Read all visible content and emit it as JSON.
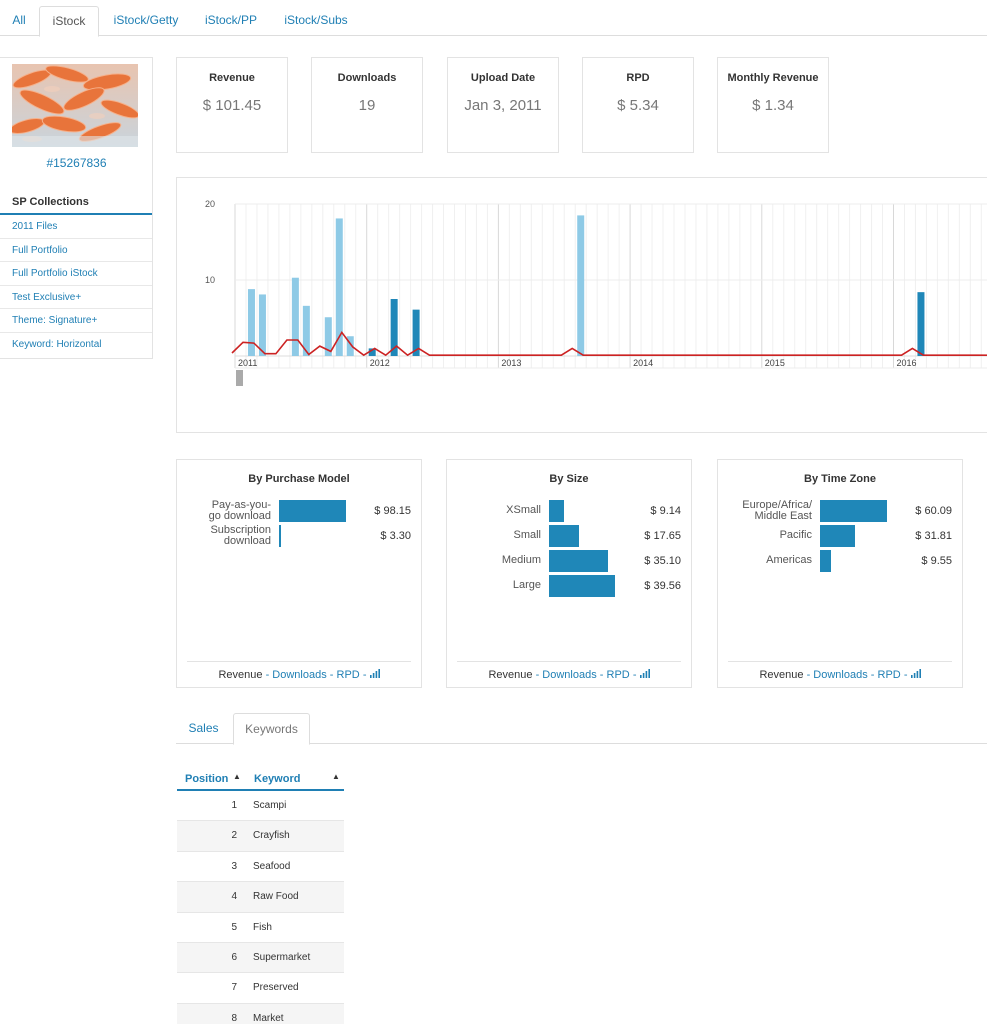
{
  "top_tabs": [
    {
      "label": "All",
      "active": false
    },
    {
      "label": "iStock",
      "active": true
    },
    {
      "label": "iStock/Getty",
      "active": false
    },
    {
      "label": "iStock/PP",
      "active": false
    },
    {
      "label": "iStock/Subs",
      "active": false
    }
  ],
  "sidebar": {
    "image_id": "#15267836",
    "collections_title": "SP Collections",
    "collections": [
      "2011 Files",
      "Full Portfolio",
      "Full Portfolio iStock",
      "Test Exclusive+",
      "Theme: Signature+",
      "Keyword: Horizontal"
    ]
  },
  "stats": [
    {
      "label": "Revenue",
      "value": "$ 101.45"
    },
    {
      "label": "Downloads",
      "value": "19"
    },
    {
      "label": "Upload Date",
      "value": "Jan 3, 2011"
    },
    {
      "label": "RPD",
      "value": "$ 5.34"
    },
    {
      "label": "Monthly Revenue",
      "value": "$ 1.34"
    }
  ],
  "chart_data": {
    "type": "bar",
    "y_ticks": [
      "20",
      "10"
    ],
    "x_ticks": [
      "2011",
      "2012",
      "2013",
      "2014",
      "2015",
      "2016"
    ],
    "ylim": [
      0,
      20
    ],
    "grid": true,
    "colors": {
      "light": "#8ecae6",
      "dark": "#1f87b8",
      "line": "#cc2222",
      "marker": "#aaaaaa"
    },
    "bars": [
      {
        "x": "2011-02",
        "value": 8.8,
        "shade": "light"
      },
      {
        "x": "2011-03",
        "value": 8.1,
        "shade": "light"
      },
      {
        "x": "2011-06",
        "value": 10.3,
        "shade": "light"
      },
      {
        "x": "2011-07",
        "value": 6.6,
        "shade": "light"
      },
      {
        "x": "2011-09",
        "value": 5.1,
        "shade": "light"
      },
      {
        "x": "2011-10",
        "value": 18.1,
        "shade": "light"
      },
      {
        "x": "2011-11",
        "value": 2.6,
        "shade": "light"
      },
      {
        "x": "2012-01",
        "value": 1.0,
        "shade": "dark"
      },
      {
        "x": "2012-03",
        "value": 7.5,
        "shade": "dark"
      },
      {
        "x": "2012-05",
        "value": 6.1,
        "shade": "dark"
      },
      {
        "x": "2013-08",
        "value": 18.5,
        "shade": "light"
      },
      {
        "x": "2016-03",
        "value": 8.4,
        "shade": "dark"
      }
    ],
    "line": [
      {
        "x": "2011-01",
        "value": 0.4
      },
      {
        "x": "2011-02",
        "value": 1.8
      },
      {
        "x": "2011-03",
        "value": 1.7
      },
      {
        "x": "2011-04",
        "value": 0.3
      },
      {
        "x": "2011-05",
        "value": 0.3
      },
      {
        "x": "2011-06",
        "value": 2.1
      },
      {
        "x": "2011-07",
        "value": 2.1
      },
      {
        "x": "2011-08",
        "value": 0.2
      },
      {
        "x": "2011-09",
        "value": 1.3
      },
      {
        "x": "2011-10",
        "value": 0.6
      },
      {
        "x": "2011-11",
        "value": 3.1
      },
      {
        "x": "2011-12",
        "value": 1.2
      },
      {
        "x": "2012-01",
        "value": 0.1
      },
      {
        "x": "2012-02",
        "value": 1.0
      },
      {
        "x": "2012-03",
        "value": 0.1
      },
      {
        "x": "2012-04",
        "value": 1.3
      },
      {
        "x": "2012-05",
        "value": 0.1
      },
      {
        "x": "2012-06",
        "value": 1.0
      },
      {
        "x": "2012-07",
        "value": 0.1
      },
      {
        "x": "2013-07",
        "value": 0.1
      },
      {
        "x": "2013-08",
        "value": 1.0
      },
      {
        "x": "2013-09",
        "value": 0.1
      },
      {
        "x": "2016-02",
        "value": 0.1
      },
      {
        "x": "2016-03",
        "value": 1.0
      },
      {
        "x": "2016-04",
        "value": 0.1
      },
      {
        "x": "2016-09",
        "value": 0.1
      }
    ]
  },
  "panels": [
    {
      "title": "By Purchase Model",
      "rows": [
        {
          "label": "Pay-as-you-\ngo download",
          "value": "$ 98.15",
          "amount": 98.15
        },
        {
          "label": "Subscription\ndownload",
          "value": "$ 3.30",
          "amount": 3.3
        }
      ],
      "footer_metric": "Revenue",
      "footer_links": [
        "Downloads",
        "RPD"
      ]
    },
    {
      "title": "By Size",
      "rows": [
        {
          "label": "XSmall",
          "value": "$ 9.14",
          "amount": 9.14
        },
        {
          "label": "Small",
          "value": "$ 17.65",
          "amount": 17.65
        },
        {
          "label": "Medium",
          "value": "$ 35.10",
          "amount": 35.1
        },
        {
          "label": "Large",
          "value": "$ 39.56",
          "amount": 39.56
        }
      ],
      "footer_metric": "Revenue",
      "footer_links": [
        "Downloads",
        "RPD"
      ]
    },
    {
      "title": "By Time Zone",
      "rows": [
        {
          "label": "Europe/Africa/\nMiddle East",
          "value": "$ 60.09",
          "amount": 60.09
        },
        {
          "label": "Pacific",
          "value": "$ 31.81",
          "amount": 31.81
        },
        {
          "label": "Americas",
          "value": "$ 9.55",
          "amount": 9.55
        }
      ],
      "footer_metric": "Revenue",
      "footer_links": [
        "Downloads",
        "RPD"
      ]
    }
  ],
  "sub_tabs": [
    {
      "label": "Sales",
      "active": false
    },
    {
      "label": "Keywords",
      "active": true
    }
  ],
  "keywords_table": {
    "headers": [
      "Position",
      "Keyword"
    ],
    "rows": [
      {
        "position": "1",
        "keyword": "Scampi"
      },
      {
        "position": "2",
        "keyword": "Crayfish"
      },
      {
        "position": "3",
        "keyword": "Seafood"
      },
      {
        "position": "4",
        "keyword": "Raw Food"
      },
      {
        "position": "5",
        "keyword": "Fish"
      },
      {
        "position": "6",
        "keyword": "Supermarket"
      },
      {
        "position": "7",
        "keyword": "Preserved"
      },
      {
        "position": "8",
        "keyword": "Market"
      }
    ]
  }
}
